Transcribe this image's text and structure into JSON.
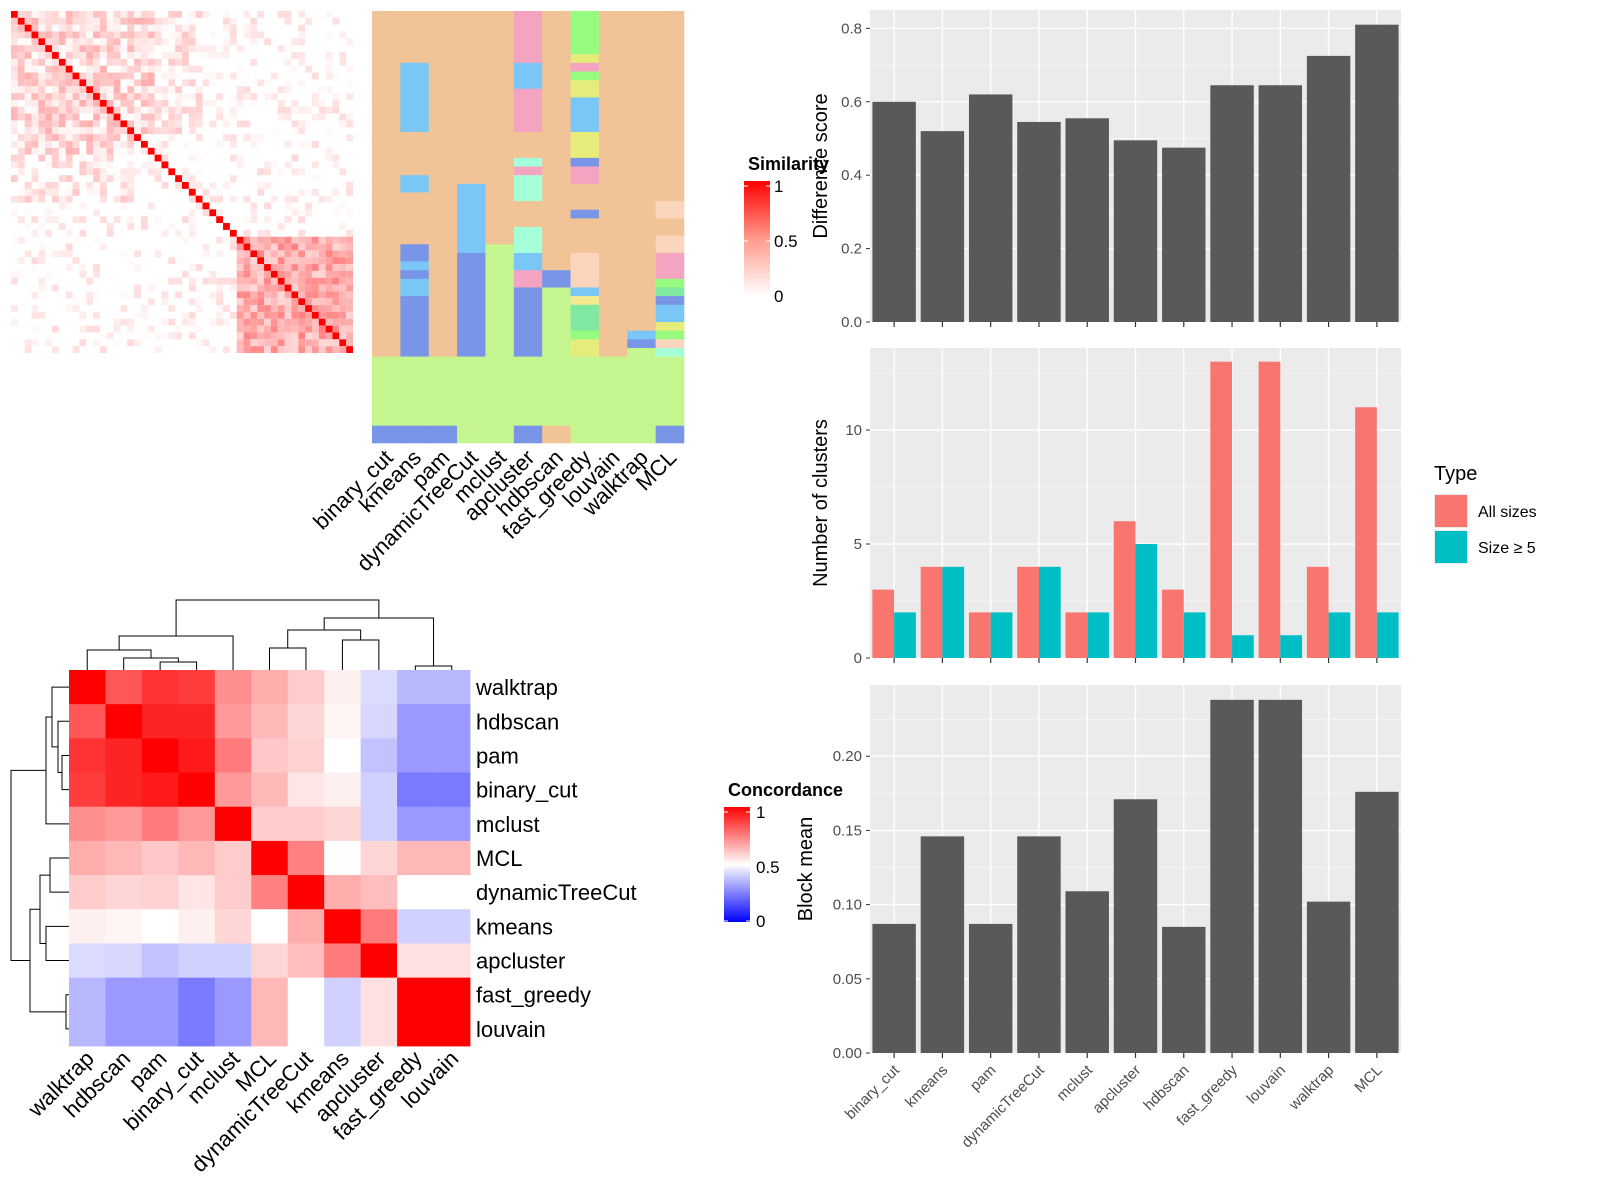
{
  "colors": {
    "panel_bg": "#ebebeb",
    "grid": "#ffffff",
    "bar_dark": "#595959",
    "series_all": "#f8766d",
    "series_size5": "#00bfc4",
    "sim_high": "#ff0000",
    "conc_low": "#0000ff",
    "cluster_palette": [
      "#f1c497",
      "#c5f58f",
      "#7895e8",
      "#7ac6f6",
      "#f4a3c0",
      "#a5ffd9",
      "#97fb7f",
      "#e5ec7a",
      "#fbd5bc",
      "#80e8a0",
      "#f6e98e"
    ]
  },
  "similarity_legend": {
    "title": "Similarity",
    "labels": [
      "1",
      "0.5",
      "0"
    ]
  },
  "concordance_legend": {
    "title": "Concordance",
    "labels": [
      "1",
      "0.5",
      "0"
    ]
  },
  "assignment_heatmap": {
    "methods": [
      "binary_cut",
      "kmeans",
      "pam",
      "dynamicTreeCut",
      "mclust",
      "apcluster",
      "hdbscan",
      "fast_greedy",
      "louvain",
      "walktrap",
      "MCL"
    ]
  },
  "concordance_heatmap": {
    "row_labels": [
      "walktrap",
      "hdbscan",
      "pam",
      "binary_cut",
      "mclust",
      "MCL",
      "dynamicTreeCut",
      "kmeans",
      "apcluster",
      "fast_greedy",
      "louvain"
    ],
    "col_labels": [
      "walktrap",
      "hdbscan",
      "pam",
      "binary_cut",
      "mclust",
      "MCL",
      "dynamicTreeCut",
      "kmeans",
      "apcluster",
      "fast_greedy",
      "louvain"
    ]
  },
  "chart_data": [
    {
      "type": "bar",
      "categories": [
        "binary_cut",
        "kmeans",
        "pam",
        "dynamicTreeCut",
        "mclust",
        "apcluster",
        "hdbscan",
        "fast_greedy",
        "louvain",
        "walktrap",
        "MCL"
      ],
      "values": [
        0.6,
        0.52,
        0.62,
        0.545,
        0.555,
        0.495,
        0.475,
        0.645,
        0.645,
        0.725,
        0.81
      ],
      "ylabel": "Difference score",
      "ylim": [
        0,
        0.85
      ],
      "yticks": [
        "0.0",
        "0.2",
        "0.4",
        "0.6",
        "0.8"
      ],
      "grid": true
    },
    {
      "type": "bar",
      "categories": [
        "binary_cut",
        "kmeans",
        "pam",
        "dynamicTreeCut",
        "mclust",
        "apcluster",
        "hdbscan",
        "fast_greedy",
        "louvain",
        "walktrap",
        "MCL"
      ],
      "series": [
        {
          "name": "All sizes",
          "values": [
            3,
            4,
            2,
            4,
            2,
            6,
            3,
            13,
            13,
            4,
            11
          ]
        },
        {
          "name": "Size ≥ 5",
          "values": [
            2,
            4,
            2,
            4,
            2,
            5,
            2,
            1,
            1,
            2,
            2
          ]
        }
      ],
      "ylabel": "Number of clusters",
      "ylim": [
        0,
        13.6
      ],
      "yticks": [
        "0",
        "5",
        "10"
      ],
      "legend_title": "Type",
      "legend_position": "right",
      "grid": true
    },
    {
      "type": "bar",
      "categories": [
        "binary_cut",
        "kmeans",
        "pam",
        "dynamicTreeCut",
        "mclust",
        "apcluster",
        "hdbscan",
        "fast_greedy",
        "louvain",
        "walktrap",
        "MCL"
      ],
      "values": [
        0.087,
        0.146,
        0.087,
        0.146,
        0.109,
        0.171,
        0.085,
        0.238,
        0.238,
        0.102,
        0.176
      ],
      "ylabel": "Block mean",
      "ylim": [
        0,
        0.248
      ],
      "yticks": [
        "0.00",
        "0.05",
        "0.10",
        "0.15",
        "0.20"
      ],
      "grid": true
    },
    {
      "type": "heatmap",
      "rows": [
        "walktrap",
        "hdbscan",
        "pam",
        "binary_cut",
        "mclust",
        "MCL",
        "dynamicTreeCut",
        "kmeans",
        "apcluster",
        "fast_greedy",
        "louvain"
      ],
      "cols": [
        "walktrap",
        "hdbscan",
        "pam",
        "binary_cut",
        "mclust",
        "MCL",
        "dynamicTreeCut",
        "kmeans",
        "apcluster",
        "fast_greedy",
        "louvain"
      ],
      "values": [
        [
          1.0,
          0.83,
          0.9,
          0.88,
          0.72,
          0.66,
          0.6,
          0.53,
          0.43,
          0.36,
          0.36
        ],
        [
          0.83,
          1.0,
          0.93,
          0.93,
          0.7,
          0.64,
          0.58,
          0.52,
          0.42,
          0.3,
          0.3
        ],
        [
          0.9,
          0.93,
          1.0,
          0.95,
          0.76,
          0.61,
          0.59,
          0.5,
          0.38,
          0.3,
          0.3
        ],
        [
          0.88,
          0.93,
          0.95,
          1.0,
          0.7,
          0.64,
          0.55,
          0.53,
          0.41,
          0.24,
          0.24
        ],
        [
          0.72,
          0.7,
          0.76,
          0.7,
          1.0,
          0.6,
          0.6,
          0.58,
          0.41,
          0.3,
          0.3
        ],
        [
          0.66,
          0.64,
          0.61,
          0.64,
          0.6,
          1.0,
          0.75,
          0.5,
          0.58,
          0.64,
          0.64
        ],
        [
          0.6,
          0.58,
          0.59,
          0.55,
          0.6,
          0.75,
          1.0,
          0.66,
          0.63,
          0.5,
          0.5
        ],
        [
          0.53,
          0.52,
          0.5,
          0.53,
          0.58,
          0.5,
          0.66,
          1.0,
          0.76,
          0.41,
          0.41
        ],
        [
          0.43,
          0.42,
          0.38,
          0.41,
          0.41,
          0.58,
          0.63,
          0.76,
          1.0,
          0.56,
          0.56
        ],
        [
          0.36,
          0.3,
          0.3,
          0.24,
          0.3,
          0.64,
          0.5,
          0.41,
          0.56,
          1.0,
          1.0
        ],
        [
          0.36,
          0.3,
          0.3,
          0.24,
          0.3,
          0.64,
          0.5,
          0.41,
          0.56,
          1.0,
          1.0
        ]
      ],
      "scale": [
        0,
        1
      ]
    }
  ]
}
